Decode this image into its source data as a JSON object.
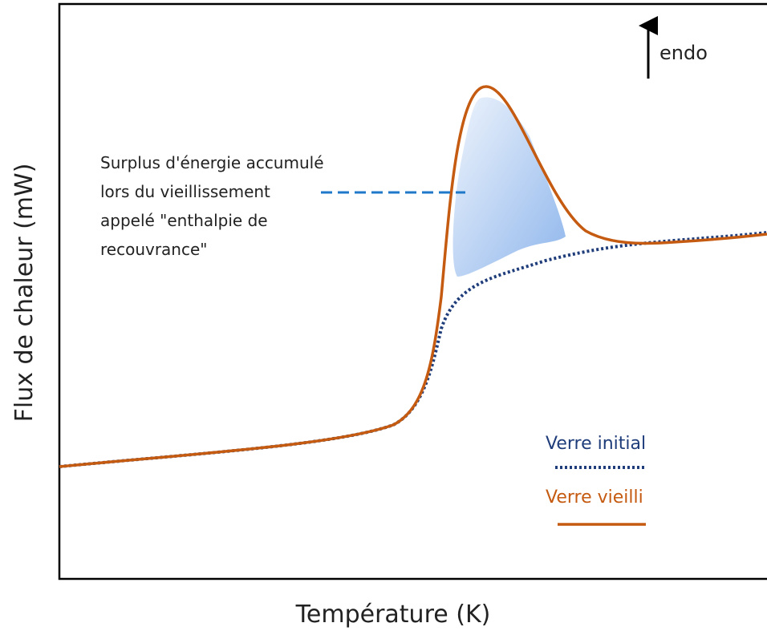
{
  "x_axis_label": "Température (K)",
  "y_axis_label": "Flux de chaleur (mW)",
  "indicator": "endo",
  "annotation": {
    "lines": [
      "Surplus d'énergie accumulé",
      "lors du vieillissement",
      "appelé \"enthalpie de",
      "recouvrance\""
    ]
  },
  "legend": [
    {
      "label": "Verre initial"
    },
    {
      "label": "Verre vieilli"
    }
  ]
}
